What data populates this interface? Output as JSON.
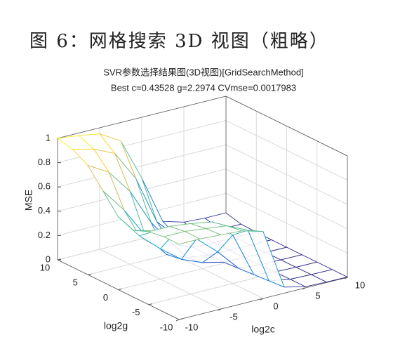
{
  "caption": "图 6：网格搜索 3D 视图（粗略）",
  "chart_data": {
    "type": "surface",
    "title": "SVR参数选择结果图(3D视图)[GridSearchMethod]",
    "subtitle": "Best c=0.43528 g=2.2974 CVmse=0.0017983",
    "xlabel": "log2c",
    "ylabel": "log2g",
    "zlabel": "MSE",
    "x": [
      -10,
      -7.5,
      -5,
      -2.5,
      0,
      2.5,
      5,
      7.5,
      10
    ],
    "y": [
      -10,
      -7.5,
      -5,
      -2.5,
      0,
      2.5,
      5,
      7.5,
      10
    ],
    "values": [
      [
        0.62,
        0.62,
        0.61,
        0.6,
        0.55,
        0.05,
        0.01,
        0.005,
        0.003
      ],
      [
        0.62,
        0.62,
        0.6,
        0.58,
        0.5,
        0.04,
        0.01,
        0.005,
        0.003
      ],
      [
        0.6,
        0.6,
        0.58,
        0.55,
        0.4,
        0.03,
        0.008,
        0.004,
        0.003
      ],
      [
        0.55,
        0.5,
        0.45,
        0.35,
        0.2,
        0.02,
        0.005,
        0.003,
        0.002
      ],
      [
        0.6,
        0.4,
        0.25,
        0.12,
        0.05,
        0.01,
        0.004,
        0.003,
        0.002
      ],
      [
        0.75,
        0.55,
        0.3,
        0.1,
        0.03,
        0.006,
        0.003,
        0.002,
        0.002
      ],
      [
        0.9,
        0.8,
        0.6,
        0.3,
        0.08,
        0.01,
        0.004,
        0.003,
        0.003
      ],
      [
        0.97,
        0.93,
        0.85,
        0.6,
        0.2,
        0.03,
        0.01,
        0.008,
        0.008
      ],
      [
        1,
        0.98,
        0.95,
        0.85,
        0.5,
        0.1,
        0.05,
        0.04,
        0.04
      ]
    ],
    "xlim": [
      -10,
      10
    ],
    "ylim": [
      -10,
      10
    ],
    "zlim": [
      0,
      1
    ],
    "xticks": [
      -10,
      -5,
      0,
      5,
      10
    ],
    "yticks": [
      -10,
      -5,
      0,
      5,
      10
    ],
    "zticks": [
      0,
      0.2,
      0.4,
      0.6,
      0.8,
      1
    ],
    "grid": true,
    "colormap": [
      "#352a87",
      "#0f5cdd",
      "#1481d6",
      "#06a4ca",
      "#2eb7a4",
      "#87bf77",
      "#d1bb59",
      "#fec832",
      "#f9fb0e"
    ]
  }
}
